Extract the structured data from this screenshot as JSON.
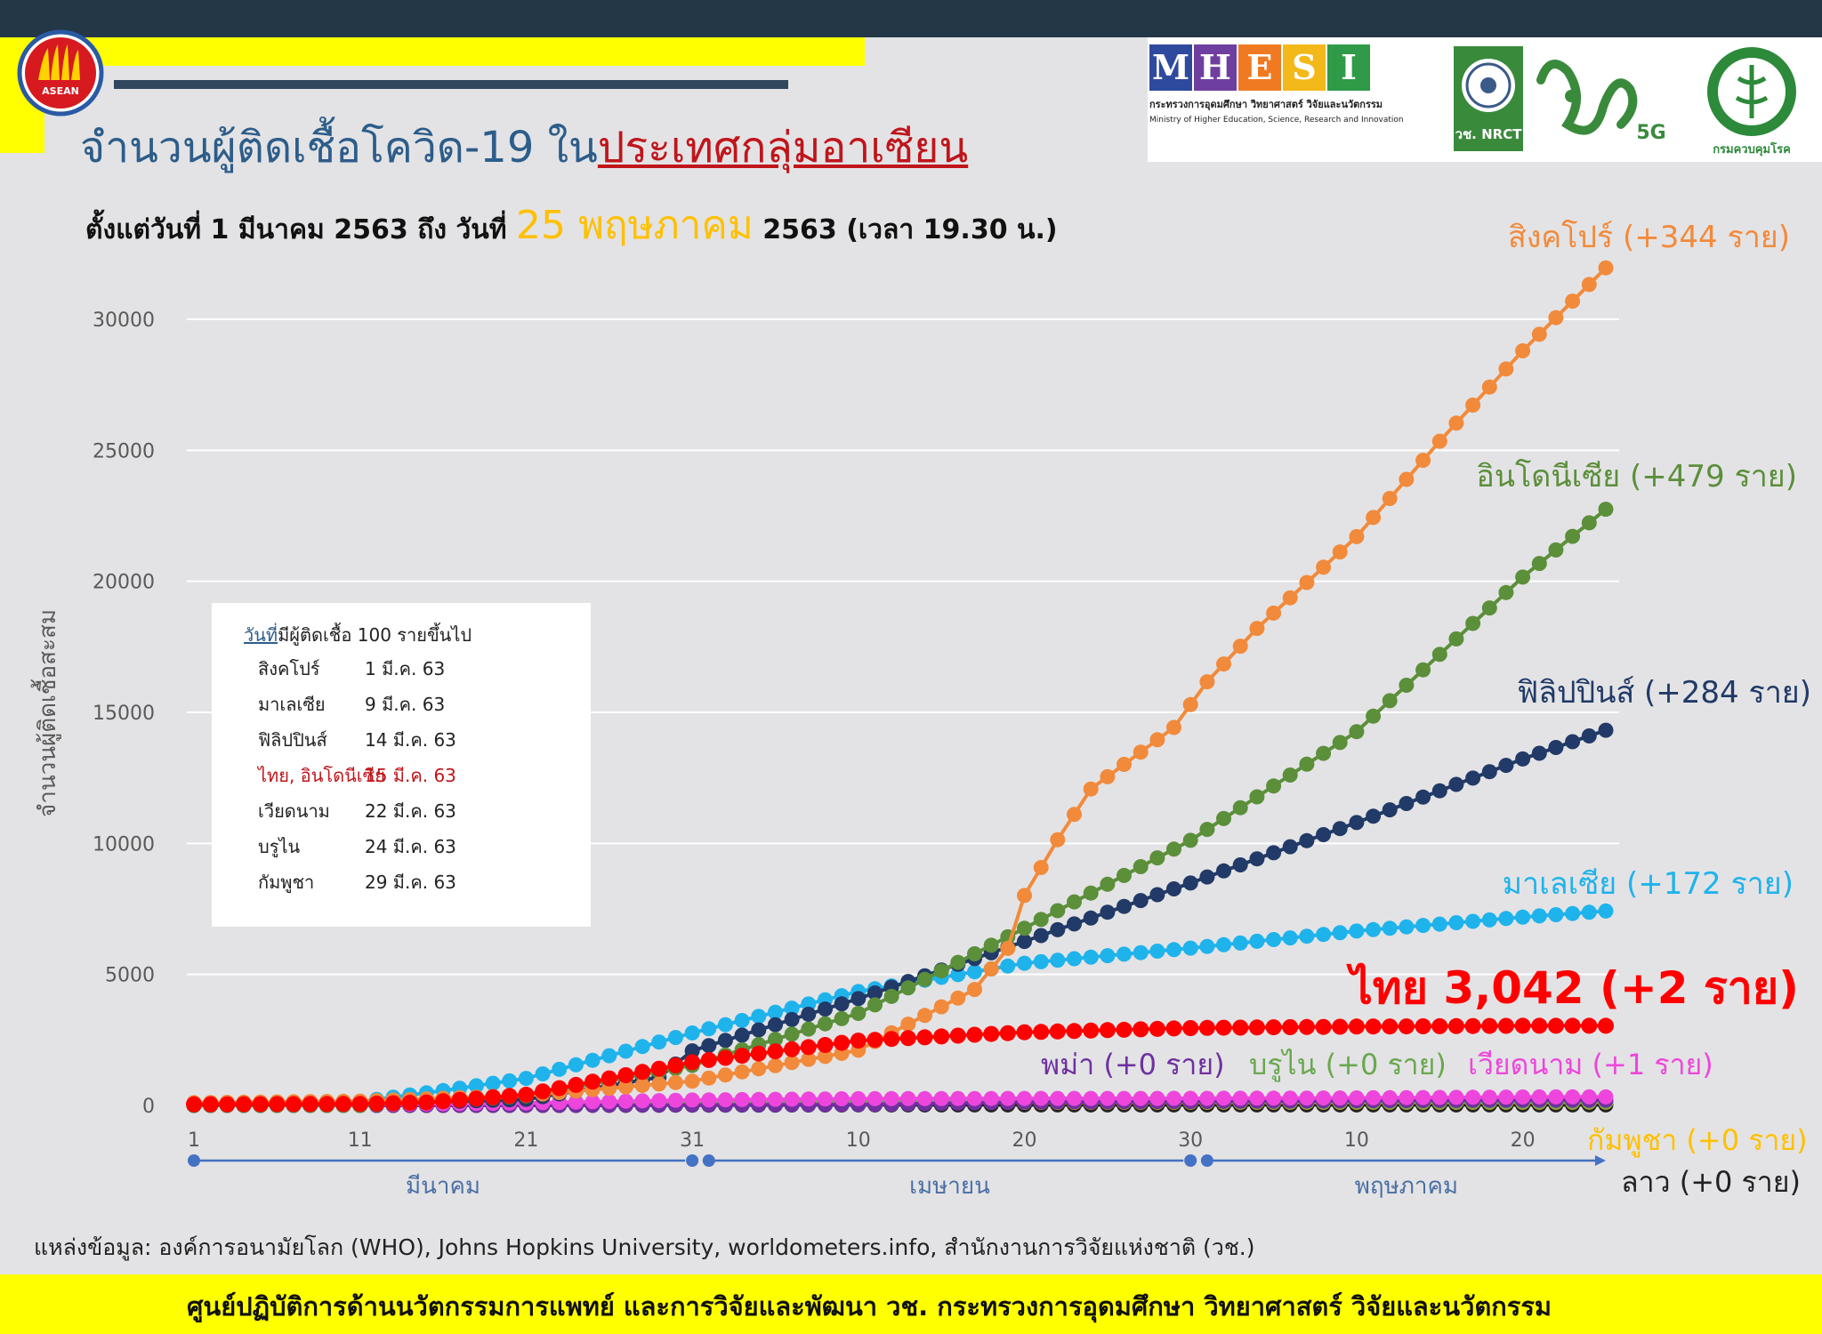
{
  "header": {
    "title_part1": "จำนวนผู้ติดเชื้อโควิด-19 ใน",
    "title_part2": "ประเทศกลุ่มอาเซียน",
    "subtitle_part1": "ตั้งแต่วันที่ 1 มีนาคม 2563 ถึง วันที่ ",
    "subtitle_date": "25 พฤษภาคม",
    "subtitle_part2": " 2563 (เวลา 19.30 น.)"
  },
  "logos": {
    "asean": "ASEAN",
    "mhesi_letters": [
      "M",
      "H",
      "E",
      "S",
      "I"
    ],
    "mhesi_colors": [
      "#2e4a9e",
      "#6f3fa0",
      "#f07a22",
      "#f3b81a",
      "#2f9a47"
    ],
    "mhesi_th": "กระทรวงการอุดมศึกษา วิทยาศาสตร์ วิจัยและนวัตกรรม",
    "mhesi_en": "Ministry of Higher Education, Science, Research and Innovation",
    "nrct_label": "วช. NRCT",
    "fiveg_label": "5G",
    "ddc_label": "กรมควบคุมโรค"
  },
  "legend_box": {
    "header_underlined": "วันที่",
    "header_rest": "มีผู้ติดเชื้อ 100 รายขึ้นไป",
    "rows": [
      {
        "country": "สิงคโปร์",
        "date": "1 มี.ค. 63",
        "color": "#222222"
      },
      {
        "country": "มาเลเซีย",
        "date": "9 มี.ค. 63",
        "color": "#222222"
      },
      {
        "country": "ฟิลิปปินส์",
        "date": "14 มี.ค. 63",
        "color": "#222222"
      },
      {
        "country": "ไทย, อินโดนีเซีย",
        "date": "15 มี.ค. 63",
        "color": "#c0151b"
      },
      {
        "country": "เวียดนาม",
        "date": "22 มี.ค. 63",
        "color": "#222222"
      },
      {
        "country": "บรูไน",
        "date": "24 มี.ค. 63",
        "color": "#222222"
      },
      {
        "country": "กัมพูชา",
        "date": "29 มี.ค. 63",
        "color": "#222222"
      }
    ]
  },
  "source": "แหล่งข้อมูล: องค์การอนามัยโลก (WHO), Johns Hopkins University, worldometers.info, สำนักงานการวิจัยแห่งชาติ (วช.)",
  "footer": "ศูนย์ปฏิบัติการด้านนวัตกรรมการแพทย์ และการวิจัยและพัฒนา  วช.   กระทรวงการอุดมศึกษา วิทยาศาสตร์ วิจัยและนวัตกรรม",
  "chart_data": {
    "type": "line",
    "ylabel": "จำนวนผู้ติดเชื้อสะสม",
    "ylim": [
      0,
      32000
    ],
    "yticks": [
      0,
      5000,
      10000,
      15000,
      20000,
      25000,
      30000
    ],
    "grid": true,
    "x_day_range": [
      1,
      86
    ],
    "x_ticks": [
      {
        "day": 1,
        "label": "1"
      },
      {
        "day": 11,
        "label": "11"
      },
      {
        "day": 21,
        "label": "21"
      },
      {
        "day": 31,
        "label": "31"
      },
      {
        "day": 41,
        "label": "10"
      },
      {
        "day": 51,
        "label": "20"
      },
      {
        "day": 61,
        "label": "30"
      },
      {
        "day": 71,
        "label": "10"
      },
      {
        "day": 81,
        "label": "20"
      }
    ],
    "months": [
      {
        "label": "มีนาคม",
        "start_day": 1,
        "end_day": 31
      },
      {
        "label": "เมษายน",
        "start_day": 32,
        "end_day": 61
      },
      {
        "label": "พฤษภาคม",
        "start_day": 62,
        "end_day": 86
      }
    ],
    "series": [
      {
        "name": "สิงคโปร์",
        "label": "สิงคโปร์ (+344 ราย)",
        "color": "#f28a3b",
        "knots": [
          [
            1,
            106
          ],
          [
            11,
            166
          ],
          [
            21,
            385
          ],
          [
            31,
            926
          ],
          [
            41,
            2108
          ],
          [
            48,
            4427
          ],
          [
            50,
            5992
          ],
          [
            51,
            8014
          ],
          [
            53,
            10141
          ],
          [
            55,
            12075
          ],
          [
            60,
            14423
          ],
          [
            62,
            16169
          ],
          [
            65,
            18205
          ],
          [
            71,
            21707
          ],
          [
            76,
            25346
          ],
          [
            81,
            28794
          ],
          [
            86,
            31960
          ]
        ]
      },
      {
        "name": "อินโดนีเซีย",
        "label": "อินโดนีเซีย (+479 ราย)",
        "color": "#5b8f3a",
        "knots": [
          [
            1,
            2
          ],
          [
            11,
            4
          ],
          [
            15,
            117
          ],
          [
            21,
            369
          ],
          [
            31,
            1528
          ],
          [
            41,
            3512
          ],
          [
            51,
            6760
          ],
          [
            61,
            10118
          ],
          [
            71,
            14265
          ],
          [
            81,
            20162
          ],
          [
            86,
            22750
          ]
        ]
      },
      {
        "name": "ฟิลิปปินส์",
        "label": "ฟิลิปปินส์ (+284 ราย)",
        "color": "#213a67",
        "knots": [
          [
            1,
            3
          ],
          [
            11,
            24
          ],
          [
            14,
            111
          ],
          [
            21,
            230
          ],
          [
            29,
            1075
          ],
          [
            31,
            2084
          ],
          [
            41,
            4076
          ],
          [
            51,
            6259
          ],
          [
            61,
            8488
          ],
          [
            71,
            10794
          ],
          [
            81,
            13221
          ],
          [
            86,
            14319
          ]
        ]
      },
      {
        "name": "มาเลเซีย",
        "label": "มาเลเซีย (+172 ราย)",
        "color": "#1fb3ec",
        "knots": [
          [
            1,
            29
          ],
          [
            9,
            99
          ],
          [
            11,
            149
          ],
          [
            16,
            566
          ],
          [
            21,
            1030
          ],
          [
            31,
            2766
          ],
          [
            41,
            4346
          ],
          [
            51,
            5425
          ],
          [
            61,
            6002
          ],
          [
            71,
            6656
          ],
          [
            81,
            7185
          ],
          [
            86,
            7417
          ]
        ]
      },
      {
        "name": "ไทย",
        "label": "ไทย 3,042 (+2 ราย)",
        "color": "#ff0000",
        "knots": [
          [
            1,
            42
          ],
          [
            11,
            59
          ],
          [
            15,
            114
          ],
          [
            21,
            411
          ],
          [
            31,
            1651
          ],
          [
            41,
            2473
          ],
          [
            51,
            2792
          ],
          [
            61,
            2954
          ],
          [
            71,
            3009
          ],
          [
            81,
            3040
          ],
          [
            86,
            3042
          ]
        ]
      },
      {
        "name": "เวียดนาม",
        "label": "เวียดนาม (+1 ราย)",
        "color": "#ee46dc",
        "knots": [
          [
            1,
            16
          ],
          [
            11,
            35
          ],
          [
            21,
            94
          ],
          [
            31,
            207
          ],
          [
            41,
            258
          ],
          [
            51,
            268
          ],
          [
            61,
            270
          ],
          [
            71,
            288
          ],
          [
            81,
            324
          ],
          [
            86,
            326
          ]
        ]
      },
      {
        "name": "บรูไน",
        "label": "บรูไน (+0 ราย)",
        "color": "#6aa84f",
        "knots": [
          [
            1,
            0
          ],
          [
            11,
            1
          ],
          [
            21,
            83
          ],
          [
            31,
            129
          ],
          [
            41,
            136
          ],
          [
            51,
            138
          ],
          [
            61,
            138
          ],
          [
            86,
            141
          ]
        ]
      },
      {
        "name": "พม่า",
        "label": "พม่า (+0 ราย)",
        "color": "#7030a0",
        "knots": [
          [
            1,
            0
          ],
          [
            23,
            0
          ],
          [
            31,
            15
          ],
          [
            41,
            28
          ],
          [
            51,
            127
          ],
          [
            61,
            151
          ],
          [
            71,
            180
          ],
          [
            81,
            199
          ],
          [
            86,
            201
          ]
        ]
      },
      {
        "name": "กัมพูชา",
        "label": "กัมพูชา (+0 ราย)",
        "color": "#ffc000",
        "knots": [
          [
            1,
            1
          ],
          [
            11,
            2
          ],
          [
            21,
            53
          ],
          [
            31,
            109
          ],
          [
            41,
            119
          ],
          [
            86,
            124
          ]
        ]
      },
      {
        "name": "ลาว",
        "label": "ลาว (+0 ราย)",
        "color": "#222222",
        "knots": [
          [
            1,
            0
          ],
          [
            23,
            0
          ],
          [
            31,
            10
          ],
          [
            41,
            19
          ],
          [
            86,
            19
          ]
        ]
      }
    ]
  }
}
